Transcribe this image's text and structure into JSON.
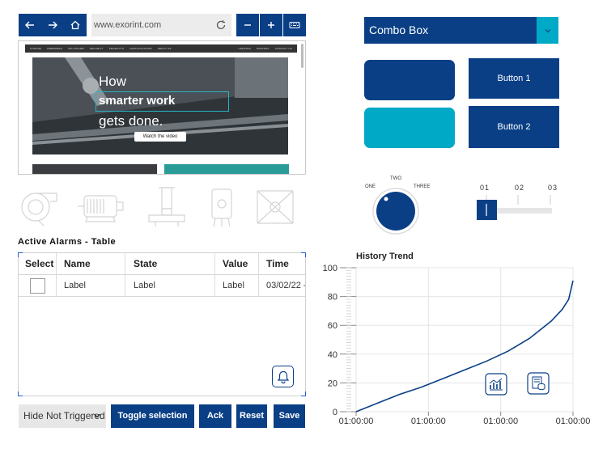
{
  "browser": {
    "url": "www.exorint.com",
    "site_nav": [
      "CORONA",
      "EMBEDDED",
      "XPLATFORM",
      "SECURITY",
      "PRODUCTS",
      "CERTIFICATIONS",
      "ABOUT US"
    ],
    "site_nav_right": [
      "UPDATES",
      "SUPPORT",
      "CONTACT US"
    ],
    "hero_line1": "How",
    "hero_line2": "smarter work",
    "hero_line3": "gets done.",
    "hero_cta": "Watch the video"
  },
  "alarms": {
    "title": "Active Alarms - Table",
    "columns": [
      "Select",
      "Name",
      "State",
      "Value",
      "Time"
    ],
    "rows": [
      {
        "name": "Label",
        "state": "Label",
        "value": "Label",
        "time": "03/02/22 -"
      }
    ],
    "filter": "Hide Not Triggered",
    "buttons": {
      "toggle": "Toggle selection",
      "ack": "Ack",
      "reset": "Reset",
      "save": "Save"
    }
  },
  "combo": {
    "label": "Combo Box"
  },
  "buttons": {
    "button1": "Button 1",
    "button2": "Button 2"
  },
  "knob": {
    "labels": [
      "ONE",
      "TWO",
      "THREE"
    ],
    "position": "ONE"
  },
  "slider": {
    "labels": [
      "01",
      "02",
      "03"
    ],
    "position": "01"
  },
  "trend": {
    "title": "History Trend",
    "chart_data": {
      "type": "line",
      "title": "History Trend",
      "x_tick_labels": [
        "01:00:00",
        "01:00:00",
        "01:00:00",
        "01:00:00"
      ],
      "y_ticks": [
        0,
        20,
        40,
        60,
        80,
        100
      ],
      "ylim": [
        0,
        100
      ],
      "grid": true,
      "series": [
        {
          "x": [
            0,
            0.1,
            0.2,
            0.3,
            0.4,
            0.5,
            0.6,
            0.7,
            0.8,
            0.9,
            0.95,
            0.98,
            1.0
          ],
          "values": [
            0,
            6,
            12,
            17,
            23,
            29,
            35,
            42,
            51,
            63,
            71,
            78,
            91
          ]
        }
      ]
    },
    "colors": {
      "line": "#0a3f86",
      "grid": "#e5e5e5"
    }
  },
  "colors": {
    "primary": "#0a3f86",
    "accent": "#00a9c5"
  }
}
